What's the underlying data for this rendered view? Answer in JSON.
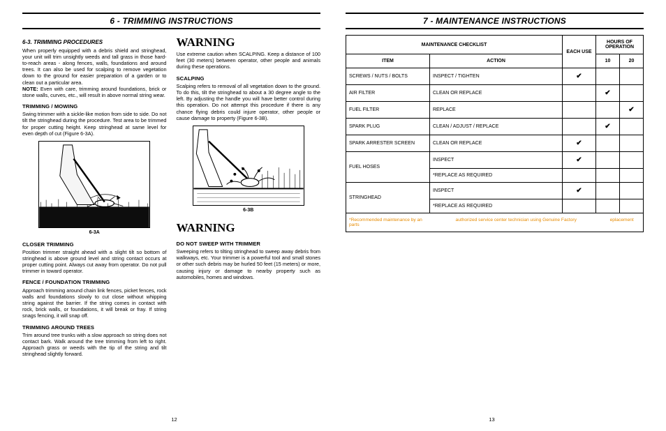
{
  "left": {
    "section_title": "6 - TRIMMING INSTRUCTIONS",
    "page_num": "12",
    "col1": {
      "h1": "6-3. TRIMMING PROCEDURES",
      "p1": "When properly equipped with a debris shield and stringhead, your unit will trim unsightly weeds and tall grass in those hard-to-reach areas - along fences, walls, foundations and around trees. It can also be used for scalping to remove vegetation down to the ground for easier preparation of a garden or to clean out a particular area.",
      "note_label": "NOTE:",
      "note": " Even with care, trimming around foundations, brick or stone walls, curves, etc., will result in above normal string wear.",
      "h2": "TRIMMING / MOWING",
      "p2": "Swing trimmer with a sickle-like motion from side to side. Do not tilt the stringhead during the procedure. Test area to be trimmed for proper cutting height. Keep stringhead at same level for even depth of cut (Figure 6-3A).",
      "cap1": "6-3A",
      "h3": "CLOSER TRIMMING",
      "p3": "Position trimmer straight ahead with a slight tilt so bottom of stringhead is above ground level and string contact occurs at proper cutting point. Always cut away from operator. Do not pull trimmer in toward operator.",
      "h4": "FENCE / FOUNDATION TRIMMING",
      "p4": "Approach trimming around chain link fences, picket fences, rock walls and foundations slowly to cut close without whipping string against the barrier. If the string comes in contact with rock, brick walls, or foundations, it will break or fray. If string snags fencing, it will snap off.",
      "h5": "TRIMMING AROUND TREES",
      "p5": "Trim around tree trunks with a slow approach so string does not contact bark. Walk around the tree trimming from left to right. Approach grass or weeds with the tip of the string and tilt stringhead slightly forward."
    },
    "col2": {
      "w1": "WARNING",
      "p1": "Use extreme caution when SCALPING. Keep a distance of 100 feet (30 meters) between operator, other people and animals during these operations.",
      "h1": "SCALPING",
      "p2": "Scalping refers to removal of all vegetation down to the ground. To do this, tilt the stringhead to about a 30 degree angle to the left. By adjusting the handle you will have better control during this operation. Do not attempt this procedure if there is any chance flying debris could injure operator, other people or cause damage to property (Figure 6-3B).",
      "cap1": "6-3B",
      "w2": "WARNING",
      "h2": "DO NOT SWEEP WITH TRIMMER",
      "p3": "Sweeping refers to tilting stringhead to sweep away debris from walkways, etc. Your trimmer is a powerful tool and small stones or other such debris may be hurled 50 feet (15 meters) or more, causing injury or damage to nearby property such as automobiles, homes and windows."
    }
  },
  "right": {
    "section_title": "7 - MAINTENANCE INSTRUCTIONS",
    "page_num": "13",
    "table": {
      "head": {
        "checklist": "MAINTENANCE CHECKLIST",
        "each_use": "EACH USE",
        "hours": "HOURS OF OPERATION",
        "item": "ITEM",
        "action": "ACTION",
        "h10": "10",
        "h20": "20"
      },
      "rows": [
        {
          "item": "SCREWS / NUTS / BOLTS",
          "action": "INSPECT / TIGHTEN",
          "each": "✔",
          "h10": "",
          "h20": ""
        },
        {
          "item": "AIR FILTER",
          "action": "CLEAN OR REPLACE",
          "each": "",
          "h10": "✔",
          "h20": ""
        },
        {
          "item": "FUEL FILTER",
          "action": "REPLACE",
          "each": "",
          "h10": "",
          "h20": "✔"
        },
        {
          "item": "SPARK PLUG",
          "action": "CLEAN / ADJUST / REPLACE",
          "each": "",
          "h10": "✔",
          "h20": ""
        },
        {
          "item": "SPARK ARRESTER SCREEN",
          "action": "CLEAN OR REPLACE",
          "each": "✔",
          "h10": "",
          "h20": ""
        },
        {
          "item": "FUEL HOSES",
          "action": "INSPECT",
          "each": "✔",
          "h10": "",
          "h20": "",
          "rowspan": 2
        },
        {
          "item": "",
          "action": "*REPLACE AS REQUIRED",
          "each": "",
          "h10": "",
          "h20": ""
        },
        {
          "item": "STRINGHEAD",
          "action": "INSPECT",
          "each": "✔",
          "h10": "",
          "h20": "",
          "rowspan": 2
        },
        {
          "item": "",
          "action": "*REPLACE AS REQUIRED",
          "each": "",
          "h10": "",
          "h20": ""
        }
      ],
      "footnote": {
        "a": "*Recommended  maintenance by an",
        "b": "authorized service center technician using Genuine Factory",
        "c": "eplacement parts"
      }
    }
  }
}
